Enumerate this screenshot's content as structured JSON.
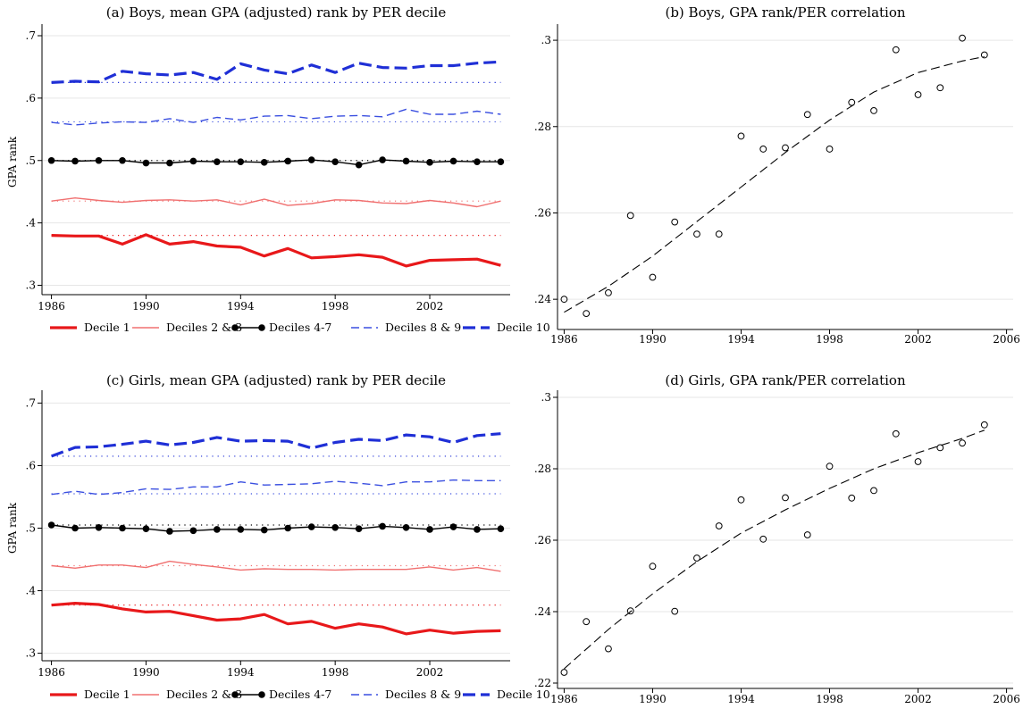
{
  "chart_data": [
    {
      "id": "a",
      "type": "line",
      "title": "(a) Boys, mean GPA (adjusted) rank by PER decile",
      "ylabel": "GPA rank",
      "ylim": [
        0.285,
        0.71
      ],
      "xlim": [
        1985.6,
        2005.4
      ],
      "yticks": [
        0.3,
        0.4,
        0.5,
        0.6,
        0.7
      ],
      "ytick_labels": [
        ".3",
        ".4",
        ".5",
        ".6",
        ".7"
      ],
      "xticks": [
        1986,
        1990,
        1994,
        1998,
        2002
      ],
      "xtick_labels": [
        "1986",
        "1990",
        "1994",
        "1998",
        "2002"
      ],
      "grid": true,
      "legend_position": "bottom",
      "x": [
        1986,
        1987,
        1988,
        1989,
        1990,
        1991,
        1992,
        1993,
        1994,
        1995,
        1996,
        1997,
        1998,
        1999,
        2000,
        2001,
        2002,
        2003,
        2004,
        2005
      ],
      "series": [
        {
          "name": "Decile 1",
          "color": "#e8181a",
          "width": 3.2,
          "dash": "",
          "marker": false,
          "ref": 0.38,
          "values": [
            0.38,
            0.379,
            0.379,
            0.366,
            0.381,
            0.366,
            0.37,
            0.363,
            0.361,
            0.347,
            0.359,
            0.344,
            0.346,
            0.349,
            0.345,
            0.331,
            0.34,
            0.341,
            0.342,
            0.332
          ]
        },
        {
          "name": "Deciles 2 & 3",
          "color": "#f07070",
          "width": 1.4,
          "dash": "",
          "marker": false,
          "ref": 0.435,
          "values": [
            0.435,
            0.44,
            0.436,
            0.433,
            0.436,
            0.437,
            0.435,
            0.437,
            0.429,
            0.438,
            0.428,
            0.431,
            0.437,
            0.436,
            0.432,
            0.431,
            0.436,
            0.432,
            0.426,
            0.435
          ]
        },
        {
          "name": "Deciles 4-7",
          "color": "#000000",
          "width": 1.4,
          "dash": "",
          "marker": true,
          "ref": 0.5,
          "values": [
            0.5,
            0.499,
            0.5,
            0.5,
            0.496,
            0.496,
            0.499,
            0.498,
            0.498,
            0.497,
            0.499,
            0.501,
            0.498,
            0.493,
            0.501,
            0.499,
            0.497,
            0.499,
            0.498,
            0.498
          ]
        },
        {
          "name": "Deciles 8 & 9",
          "color": "#3a4fe0",
          "width": 1.4,
          "dash": "9,5",
          "marker": false,
          "ref": 0.562,
          "values": [
            0.561,
            0.557,
            0.56,
            0.562,
            0.561,
            0.567,
            0.561,
            0.569,
            0.565,
            0.571,
            0.572,
            0.567,
            0.571,
            0.572,
            0.57,
            0.582,
            0.574,
            0.574,
            0.579,
            0.574
          ]
        },
        {
          "name": "Decile 10",
          "color": "#1f2fd6",
          "width": 3.2,
          "dash": "14,6",
          "marker": false,
          "ref": 0.625,
          "values": [
            0.625,
            0.627,
            0.626,
            0.643,
            0.639,
            0.637,
            0.641,
            0.63,
            0.655,
            0.645,
            0.639,
            0.653,
            0.641,
            0.656,
            0.649,
            0.648,
            0.652,
            0.652,
            0.656,
            0.658
          ]
        }
      ]
    },
    {
      "id": "b",
      "type": "scatter",
      "title": "(b) Boys, GPA rank/PER correlation",
      "ylim": [
        0.233,
        0.3025
      ],
      "xlim": [
        1985.7,
        2006.3
      ],
      "yticks": [
        0.24,
        0.26,
        0.28,
        0.3
      ],
      "ytick_labels": [
        ".24",
        ".26",
        ".28",
        ".3"
      ],
      "xticks": [
        1986,
        1990,
        1994,
        1998,
        2002,
        2006
      ],
      "xtick_labels": [
        "1986",
        "1990",
        "1994",
        "1998",
        "2002",
        "2006"
      ],
      "grid": true,
      "x": [
        1986,
        1987,
        1988,
        1989,
        1990,
        1991,
        1992,
        1993,
        1994,
        1995,
        1996,
        1997,
        1998,
        1999,
        2000,
        2001,
        2002,
        2003,
        2004,
        2005
      ],
      "values": [
        0.24,
        0.2367,
        0.2415,
        0.2594,
        0.2451,
        0.2579,
        0.2551,
        0.2551,
        0.2778,
        0.2748,
        0.2751,
        0.2828,
        0.2748,
        0.2856,
        0.2837,
        0.2978,
        0.2874,
        0.289,
        0.3005,
        0.2966
      ],
      "fit": [
        [
          1986,
          0.237
        ],
        [
          1988,
          0.243
        ],
        [
          1990,
          0.25
        ],
        [
          1992,
          0.258
        ],
        [
          1994,
          0.266
        ],
        [
          1996,
          0.274
        ],
        [
          1998,
          0.2815
        ],
        [
          2000,
          0.288
        ],
        [
          2002,
          0.2925
        ],
        [
          2004,
          0.2952
        ],
        [
          2005,
          0.2962
        ]
      ]
    },
    {
      "id": "c",
      "type": "line",
      "title": "(c) Girls, mean GPA (adjusted) rank by PER decile",
      "ylabel": "GPA rank",
      "ylim": [
        0.288,
        0.712
      ],
      "xlim": [
        1985.6,
        2005.4
      ],
      "yticks": [
        0.3,
        0.4,
        0.5,
        0.6,
        0.7
      ],
      "ytick_labels": [
        ".3",
        ".4",
        ".5",
        ".6",
        ".7"
      ],
      "xticks": [
        1986,
        1990,
        1994,
        1998,
        2002
      ],
      "xtick_labels": [
        "1986",
        "1990",
        "1994",
        "1998",
        "2002"
      ],
      "grid": true,
      "legend_position": "bottom",
      "x": [
        1986,
        1987,
        1988,
        1989,
        1990,
        1991,
        1992,
        1993,
        1994,
        1995,
        1996,
        1997,
        1998,
        1999,
        2000,
        2001,
        2002,
        2003,
        2004,
        2005
      ],
      "series": [
        {
          "name": "Decile 1",
          "color": "#e8181a",
          "width": 3.2,
          "dash": "",
          "marker": false,
          "ref": 0.377,
          "values": [
            0.377,
            0.38,
            0.378,
            0.371,
            0.366,
            0.367,
            0.36,
            0.353,
            0.355,
            0.362,
            0.347,
            0.351,
            0.34,
            0.347,
            0.342,
            0.331,
            0.337,
            0.332,
            0.335,
            0.336
          ]
        },
        {
          "name": "Deciles 2 & 3",
          "color": "#f07070",
          "width": 1.4,
          "dash": "",
          "marker": false,
          "ref": 0.44,
          "values": [
            0.44,
            0.436,
            0.441,
            0.441,
            0.437,
            0.447,
            0.442,
            0.438,
            0.433,
            0.435,
            0.434,
            0.434,
            0.433,
            0.434,
            0.434,
            0.434,
            0.438,
            0.433,
            0.437,
            0.431
          ]
        },
        {
          "name": "Deciles 4-7",
          "color": "#000000",
          "width": 1.4,
          "dash": "",
          "marker": true,
          "ref": 0.505,
          "values": [
            0.505,
            0.5,
            0.501,
            0.5,
            0.499,
            0.495,
            0.496,
            0.498,
            0.498,
            0.497,
            0.5,
            0.502,
            0.501,
            0.499,
            0.503,
            0.501,
            0.498,
            0.502,
            0.498,
            0.499
          ]
        },
        {
          "name": "Deciles 8 & 9",
          "color": "#3a4fe0",
          "width": 1.4,
          "dash": "9,5",
          "marker": false,
          "ref": 0.555,
          "values": [
            0.554,
            0.559,
            0.554,
            0.557,
            0.563,
            0.562,
            0.566,
            0.566,
            0.574,
            0.569,
            0.57,
            0.571,
            0.575,
            0.572,
            0.568,
            0.574,
            0.574,
            0.577,
            0.576,
            0.576
          ]
        },
        {
          "name": "Decile 10",
          "color": "#1f2fd6",
          "width": 3.2,
          "dash": "14,6",
          "marker": false,
          "ref": 0.615,
          "values": [
            0.615,
            0.629,
            0.63,
            0.634,
            0.639,
            0.633,
            0.637,
            0.645,
            0.639,
            0.64,
            0.639,
            0.628,
            0.637,
            0.642,
            0.64,
            0.649,
            0.646,
            0.637,
            0.648,
            0.651
          ]
        }
      ]
    },
    {
      "id": "d",
      "type": "scatter",
      "title": "(d) Girls, GPA rank/PER correlation",
      "ylim": [
        0.2185,
        0.3005
      ],
      "xlim": [
        1985.7,
        2006.3
      ],
      "yticks": [
        0.22,
        0.24,
        0.26,
        0.28,
        0.3
      ],
      "ytick_labels": [
        ".22",
        ".24",
        ".26",
        ".28",
        ".3"
      ],
      "xticks": [
        1986,
        1990,
        1994,
        1998,
        2002,
        2006
      ],
      "xtick_labels": [
        "1986",
        "1990",
        "1994",
        "1998",
        "2002",
        "2006"
      ],
      "grid": true,
      "x": [
        1986,
        1987,
        1988,
        1989,
        1990,
        1991,
        1992,
        1993,
        1994,
        1995,
        1996,
        1997,
        1998,
        1999,
        2000,
        2001,
        2002,
        2003,
        2004,
        2005
      ],
      "values": [
        0.223,
        0.2372,
        0.2296,
        0.2402,
        0.2527,
        0.2401,
        0.255,
        0.264,
        0.2713,
        0.2603,
        0.2719,
        0.2615,
        0.2807,
        0.2718,
        0.2739,
        0.2898,
        0.282,
        0.2859,
        0.2872,
        0.2923
      ],
      "fit": [
        [
          1986,
          0.224
        ],
        [
          1988,
          0.235
        ],
        [
          1990,
          0.245
        ],
        [
          1992,
          0.254
        ],
        [
          1994,
          0.262
        ],
        [
          1996,
          0.2685
        ],
        [
          1998,
          0.2745
        ],
        [
          2000,
          0.28
        ],
        [
          2002,
          0.2845
        ],
        [
          2004,
          0.2885
        ],
        [
          2005,
          0.2908
        ]
      ]
    }
  ]
}
